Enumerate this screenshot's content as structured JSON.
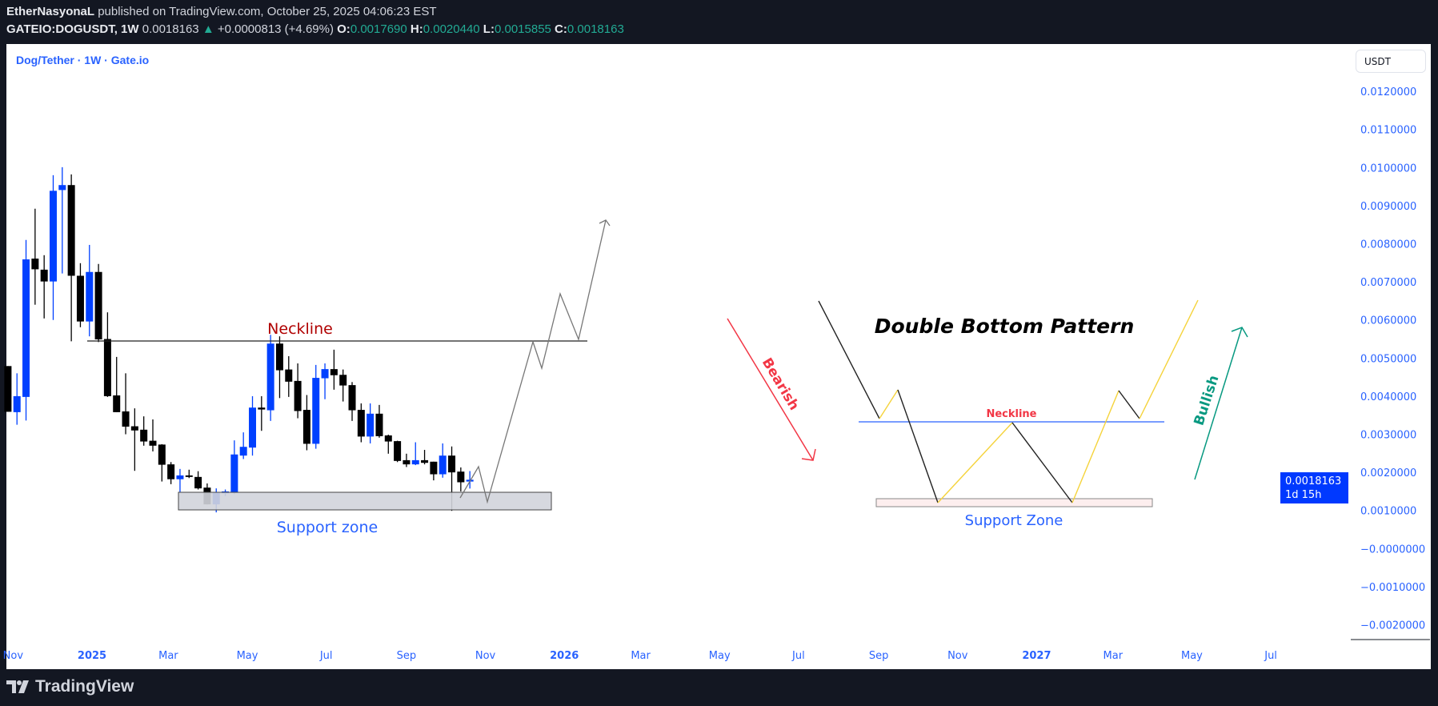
{
  "header": {
    "author": "EtherNasyonaL",
    "published": "published on TradingView.com, October 25, 2025 04:06:23 EST",
    "symbol": "GATEIO:DOGUSDT, 1W",
    "last": "0.0018163",
    "change": "+0.0000813 (+4.69%)",
    "o_label": "O:",
    "o": "0.0017690",
    "h_label": "H:",
    "h": "0.0020440",
    "l_label": "L:",
    "l": "0.0015855",
    "c_label": "C:",
    "c": "0.0018163"
  },
  "chart_title": "Dog/Tether · 1W · Gate.io",
  "price_axis": {
    "currency": "USDT",
    "ticks": [
      "0.0120000",
      "0.0110000",
      "0.0100000",
      "0.0090000",
      "0.0080000",
      "0.0070000",
      "0.0060000",
      "0.0050000",
      "0.0040000",
      "0.0030000",
      "0.0020000",
      "0.0010000",
      "−0.0000000",
      "−0.0010000",
      "−0.0020000"
    ],
    "last_price": "0.0018163",
    "countdown": "1d 15h"
  },
  "time_axis": [
    {
      "label": "Nov",
      "date": "2024-11-01",
      "major": false
    },
    {
      "label": "2025",
      "date": "2025-01-01",
      "major": true
    },
    {
      "label": "Mar",
      "date": "2025-03-01",
      "major": false
    },
    {
      "label": "May",
      "date": "2025-05-01",
      "major": false
    },
    {
      "label": "Jul",
      "date": "2025-07-01",
      "major": false
    },
    {
      "label": "Sep",
      "date": "2025-09-01",
      "major": false
    },
    {
      "label": "Nov",
      "date": "2025-11-01",
      "major": false
    },
    {
      "label": "2026",
      "date": "2026-01-01",
      "major": true
    },
    {
      "label": "Mar",
      "date": "2026-03-01",
      "major": false
    },
    {
      "label": "May",
      "date": "2026-05-01",
      "major": false
    },
    {
      "label": "Jul",
      "date": "2026-07-01",
      "major": false
    },
    {
      "label": "Sep",
      "date": "2026-09-01",
      "major": false
    },
    {
      "label": "Nov",
      "date": "2026-11-01",
      "major": false
    },
    {
      "label": "2027",
      "date": "2027-01-01",
      "major": true
    },
    {
      "label": "Mar",
      "date": "2027-03-01",
      "major": false
    },
    {
      "label": "May",
      "date": "2027-05-01",
      "major": false
    },
    {
      "label": "Jul",
      "date": "2027-07-01",
      "major": false
    }
  ],
  "colors": {
    "up": "#0040ff",
    "down": "#000000",
    "axis_text": "#2962ff",
    "neckline_label": "#b00000",
    "bearish": "#f23645",
    "bullish": "#089981",
    "pattern_up": "#f5d33b",
    "pattern_neck": "#2962ff"
  },
  "annotations": {
    "neckline_left": "Neckline",
    "support_left": "Support zone",
    "pattern_title": "Double Bottom Pattern",
    "neckline_right": "Neckline",
    "support_right": "Support Zone",
    "bearish": "Bearish",
    "bullish": "Bullish"
  },
  "chart_data": {
    "type": "candlestick",
    "ylim": [
      -0.0022,
      0.0125
    ],
    "candles": [
      [
        "2024-10-28",
        0.0048,
        0.0048,
        0.0036,
        0.0036
      ],
      [
        "2024-11-04",
        0.00359,
        0.00461,
        0.00326,
        0.00401
      ],
      [
        "2024-11-11",
        0.00399,
        0.00811,
        0.00337,
        0.0076
      ],
      [
        "2024-11-18",
        0.00762,
        0.00893,
        0.00641,
        0.00734
      ],
      [
        "2024-11-25",
        0.00733,
        0.00771,
        0.00605,
        0.00702
      ],
      [
        "2024-12-02",
        0.00702,
        0.00981,
        0.00601,
        0.0094
      ],
      [
        "2024-12-09",
        0.00942,
        0.01002,
        0.00723,
        0.00955
      ],
      [
        "2024-12-16",
        0.00955,
        0.00983,
        0.00545,
        0.00717
      ],
      [
        "2024-12-23",
        0.00717,
        0.0075,
        0.00582,
        0.00597
      ],
      [
        "2024-12-30",
        0.00597,
        0.00798,
        0.00558,
        0.00727
      ],
      [
        "2025-01-06",
        0.00727,
        0.00748,
        0.00543,
        0.0055
      ],
      [
        "2025-01-13",
        0.00551,
        0.00621,
        0.00399,
        0.00401
      ],
      [
        "2025-01-20",
        0.00403,
        0.00504,
        0.00359,
        0.00359
      ],
      [
        "2025-01-27",
        0.00361,
        0.00461,
        0.00301,
        0.00321
      ],
      [
        "2025-02-03",
        0.00322,
        0.00369,
        0.00205,
        0.00311
      ],
      [
        "2025-02-10",
        0.00313,
        0.00348,
        0.00271,
        0.00282
      ],
      [
        "2025-02-17",
        0.00284,
        0.0034,
        0.00256,
        0.00271
      ],
      [
        "2025-02-24",
        0.00274,
        0.00275,
        0.00177,
        0.00221
      ],
      [
        "2025-03-03",
        0.00222,
        0.00228,
        0.0017,
        0.00183
      ],
      [
        "2025-03-10",
        0.00183,
        0.0021,
        0.00149,
        0.00193
      ],
      [
        "2025-03-17",
        0.00193,
        0.00208,
        0.00186,
        0.00189
      ],
      [
        "2025-03-24",
        0.00189,
        0.00204,
        0.00156,
        0.00159
      ],
      [
        "2025-03-31",
        0.00161,
        0.00172,
        0.00117,
        0.00117
      ],
      [
        "2025-04-07",
        0.00117,
        0.00159,
        0.00096,
        0.00149
      ],
      [
        "2025-04-14",
        0.00146,
        0.00156,
        0.00139,
        0.00151
      ],
      [
        "2025-04-21",
        0.00147,
        0.00285,
        0.00144,
        0.00248
      ],
      [
        "2025-04-28",
        0.00245,
        0.00306,
        0.00236,
        0.00268
      ],
      [
        "2025-05-05",
        0.00266,
        0.00401,
        0.00245,
        0.00371
      ],
      [
        "2025-05-12",
        0.00371,
        0.00401,
        0.0031,
        0.00366
      ],
      [
        "2025-05-19",
        0.00364,
        0.00562,
        0.00336,
        0.00539
      ],
      [
        "2025-05-26",
        0.00539,
        0.00558,
        0.00396,
        0.00469
      ],
      [
        "2025-06-02",
        0.00471,
        0.00506,
        0.00399,
        0.00439
      ],
      [
        "2025-06-09",
        0.00441,
        0.00487,
        0.00343,
        0.00362
      ],
      [
        "2025-06-16",
        0.00365,
        0.00404,
        0.00259,
        0.00276
      ],
      [
        "2025-06-23",
        0.00276,
        0.00483,
        0.00263,
        0.00449
      ],
      [
        "2025-06-30",
        0.00448,
        0.00487,
        0.00393,
        0.00472
      ],
      [
        "2025-07-07",
        0.00472,
        0.00523,
        0.00418,
        0.00456
      ],
      [
        "2025-07-14",
        0.00457,
        0.00471,
        0.00387,
        0.00429
      ],
      [
        "2025-07-21",
        0.0043,
        0.00438,
        0.00336,
        0.00364
      ],
      [
        "2025-07-28",
        0.00365,
        0.00382,
        0.0028,
        0.00295
      ],
      [
        "2025-08-04",
        0.00295,
        0.00382,
        0.00277,
        0.00355
      ],
      [
        "2025-08-11",
        0.00355,
        0.00378,
        0.00292,
        0.00296
      ],
      [
        "2025-08-18",
        0.00298,
        0.003,
        0.0025,
        0.00282
      ],
      [
        "2025-08-25",
        0.00283,
        0.00284,
        0.00228,
        0.00231
      ],
      [
        "2025-09-01",
        0.00233,
        0.0025,
        0.00215,
        0.00222
      ],
      [
        "2025-09-08",
        0.00222,
        0.0028,
        0.0022,
        0.00233
      ],
      [
        "2025-09-15",
        0.00233,
        0.0026,
        0.00222,
        0.00226
      ],
      [
        "2025-09-22",
        0.00229,
        0.00229,
        0.0018,
        0.00196
      ],
      [
        "2025-09-29",
        0.00196,
        0.00277,
        0.00187,
        0.00245
      ],
      [
        "2025-10-06",
        0.00245,
        0.00269,
        0.001,
        0.00201
      ],
      [
        "2025-10-13",
        0.00203,
        0.00214,
        0.00151,
        0.00175
      ],
      [
        "2025-10-20",
        0.001769,
        0.002044,
        0.0015855,
        0.0018163
      ]
    ]
  },
  "footer": {
    "brand": "TradingView"
  }
}
